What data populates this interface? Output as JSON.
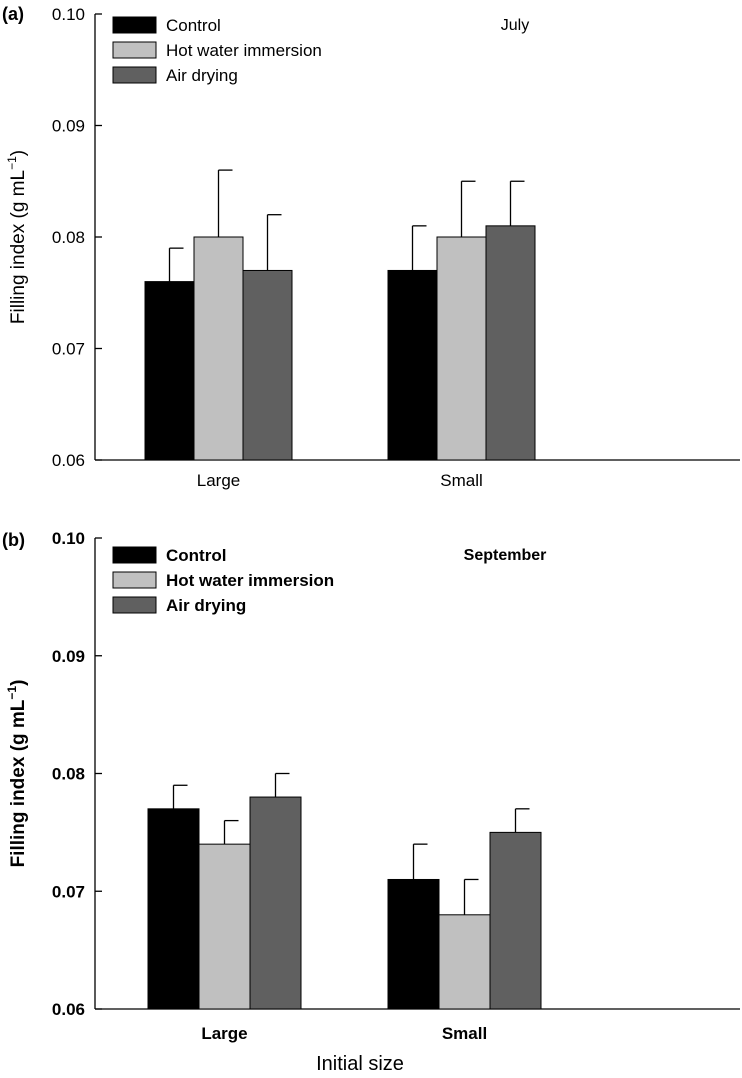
{
  "chart_data": [
    {
      "type": "bar",
      "panel_label": "(a)",
      "annotation": "July",
      "categories": [
        "Large",
        "Small"
      ],
      "series": [
        {
          "name": "Control",
          "color": "#000000",
          "values": [
            0.076,
            0.077
          ],
          "errors": [
            0.003,
            0.004
          ]
        },
        {
          "name": "Hot water immersion",
          "color": "#c0c0c0",
          "values": [
            0.08,
            0.08
          ],
          "errors": [
            0.006,
            0.005
          ]
        },
        {
          "name": "Air drying",
          "color": "#606060",
          "values": [
            0.077,
            0.081
          ],
          "errors": [
            0.005,
            0.004
          ]
        }
      ],
      "ylabel": "Filling index (g mL",
      "ylabel_sup": "−1",
      "ylabel_close": ")",
      "xlabel": "",
      "ylim": [
        0.06,
        0.1
      ],
      "yticks": [
        "0.06",
        "0.07",
        "0.08",
        "0.09",
        "0.10"
      ],
      "legend_position": "top-left",
      "bold_text": false
    },
    {
      "type": "bar",
      "panel_label": "(b)",
      "annotation": "September",
      "categories": [
        "Large",
        "Small"
      ],
      "series": [
        {
          "name": "Control",
          "color": "#000000",
          "values": [
            0.077,
            0.071
          ],
          "errors": [
            0.002,
            0.003
          ]
        },
        {
          "name": "Hot water immersion",
          "color": "#c0c0c0",
          "values": [
            0.074,
            0.068
          ],
          "errors": [
            0.002,
            0.003
          ]
        },
        {
          "name": "Air drying",
          "color": "#606060",
          "values": [
            0.078,
            0.075
          ],
          "errors": [
            0.002,
            0.002
          ]
        }
      ],
      "ylabel": "Filling index (g mL",
      "ylabel_sup": "−1",
      "ylabel_close": ")",
      "xlabel": "Initial size",
      "ylim": [
        0.06,
        0.1
      ],
      "yticks": [
        "0.06",
        "0.07",
        "0.08",
        "0.09",
        "0.10"
      ],
      "legend_position": "top-left",
      "bold_text": true
    }
  ]
}
